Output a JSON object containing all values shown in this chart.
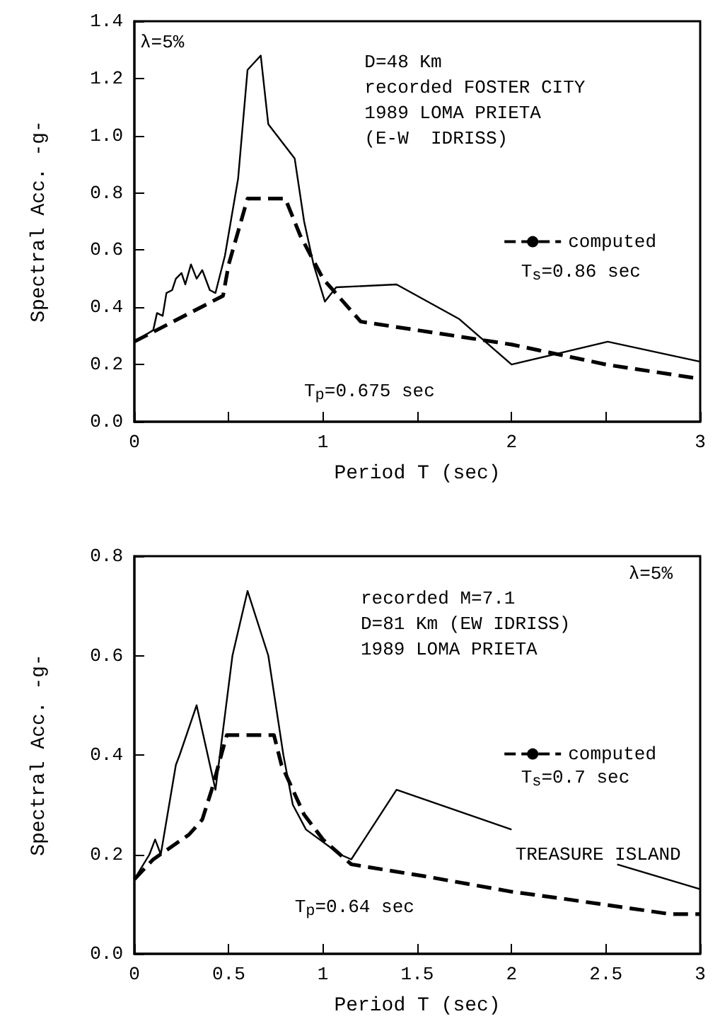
{
  "chart_data": [
    {
      "type": "line",
      "xlabel": "Period T (sec)",
      "ylabel": "Spectral Acc. -g-",
      "xlim": [
        0,
        3
      ],
      "ylim": [
        0,
        1.4
      ],
      "xticks": [
        0,
        {
          "value": 0.5,
          "label": null
        },
        1,
        {
          "value": 1.5,
          "label": null
        },
        2,
        {
          "value": 2.5,
          "label": null
        },
        3
      ],
      "yticks": [
        {
          "value": 0,
          "label": "0.0"
        },
        {
          "value": 0.2,
          "label": "0.2"
        },
        {
          "value": 0.4,
          "label": "0.4"
        },
        {
          "value": 0.6,
          "label": "0.6"
        },
        {
          "value": 0.8,
          "label": "0.8"
        },
        {
          "value": 1.0,
          "label": "1.0"
        },
        {
          "value": 1.2,
          "label": "1.2"
        },
        {
          "value": 1.4,
          "label": "1.4"
        }
      ],
      "legend": "right",
      "marker": "none",
      "series": [
        {
          "color": "#000000",
          "line_style": "solid",
          "x": [
            0,
            0.1,
            0.12,
            0.15,
            0.17,
            0.2,
            0.22,
            0.25,
            0.27,
            0.3,
            0.33,
            0.36,
            0.4,
            0.43,
            0.48,
            0.55,
            0.6,
            0.67,
            0.71,
            0.85,
            0.9,
            0.95,
            1.01,
            1.07,
            1.39,
            1.72,
            2.0,
            2.51,
            3.0
          ],
          "values": [
            0.28,
            0.32,
            0.38,
            0.37,
            0.45,
            0.46,
            0.5,
            0.52,
            0.48,
            0.55,
            0.5,
            0.53,
            0.46,
            0.45,
            0.58,
            0.85,
            1.23,
            1.28,
            1.04,
            0.92,
            0.7,
            0.55,
            0.42,
            0.47,
            0.48,
            0.36,
            0.2,
            0.28,
            0.21
          ]
        },
        {
          "name": "computed",
          "color": "#000000",
          "line_style": "dashed",
          "x": [
            0,
            0.47,
            0.5,
            0.6,
            0.8,
            0.88,
            1.0,
            1.2,
            2.0,
            2.5,
            3.0
          ],
          "values": [
            0.28,
            0.44,
            0.55,
            0.78,
            0.78,
            0.65,
            0.5,
            0.35,
            0.27,
            0.2,
            0.15
          ]
        }
      ],
      "annotations": [
        "λ=5%",
        "D=48 Km\nrecorded FOSTER CITY\n1989 LOMA PRIETA\n(E-W  IDRISS)",
        "T$_{s}$=0.86 sec",
        "T$_{p}$=0.675 sec"
      ]
    },
    {
      "type": "line",
      "xlabel": "Period T (sec)",
      "ylabel": "Spectral Acc. -g-",
      "xlim": [
        0,
        3
      ],
      "ylim": [
        0,
        0.8
      ],
      "xticks": [
        0,
        0.5,
        1,
        1.5,
        2,
        2.5,
        3
      ],
      "yticks": [
        {
          "value": 0,
          "label": "0.0"
        },
        {
          "value": 0.2,
          "label": "0.2"
        },
        {
          "value": 0.4,
          "label": "0.4"
        },
        {
          "value": 0.6,
          "label": "0.6"
        },
        {
          "value": 0.8,
          "label": "0.8"
        }
      ],
      "legend": "right",
      "marker": "none",
      "series": [
        {
          "color": "#000000",
          "line_style": "solid",
          "x": [
            0,
            0.08,
            0.11,
            0.14,
            0.22,
            0.24,
            0.33,
            0.43,
            0.52,
            0.6,
            0.71,
            0.79,
            0.84,
            0.91,
            1.09,
            1.15,
            1.39,
            2.0,
            2.3,
            2.56,
            3.0
          ],
          "values": [
            0.15,
            0.2,
            0.23,
            0.2,
            0.38,
            0.4,
            0.5,
            0.33,
            0.6,
            0.73,
            0.6,
            0.4,
            0.3,
            0.25,
            0.2,
            0.19,
            0.33,
            0.25,
            null,
            0.18,
            0.13
          ]
        },
        {
          "name": "computed",
          "color": "#000000",
          "line_style": "dashed",
          "x": [
            0,
            0.1,
            0.29,
            0.36,
            0.41,
            0.49,
            0.74,
            0.78,
            0.9,
            1.0,
            1.15,
            1.54,
            2.0,
            2.29,
            2.84,
            3.0
          ],
          "values": [
            0.15,
            0.19,
            0.24,
            0.27,
            0.33,
            0.44,
            0.44,
            0.38,
            0.28,
            0.23,
            0.18,
            0.156,
            0.125,
            0.11,
            0.08,
            0.08
          ]
        }
      ],
      "annotations": [
        "λ=5%",
        "recorded M=7.1\nD=81 Km (EW IDRISS)\n1989 LOMA PRIETA",
        "T$_{s}$=0.7 sec",
        "TREASURE ISLAND",
        "T$_{p}$=0.64 sec"
      ]
    }
  ]
}
